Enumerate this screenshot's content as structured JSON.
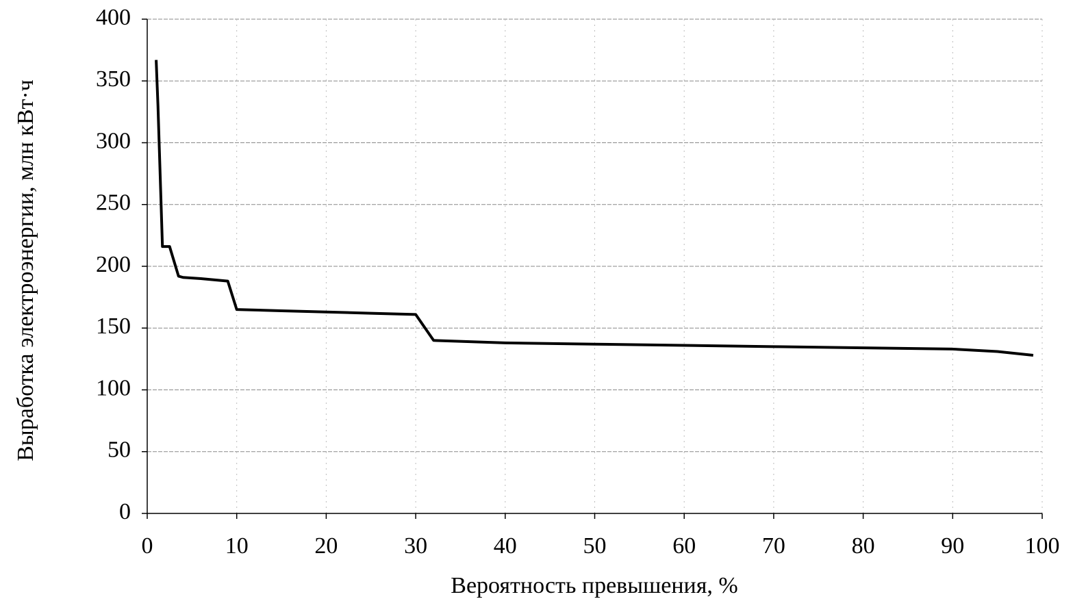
{
  "chart_data": {
    "type": "line",
    "x_label": "Вероятность превышения, %",
    "y_label": "Выработка электроэнергии, млн кВт·ч",
    "series": [
      {
        "color": "#000000",
        "x": [
          1,
          1.2,
          1.7,
          2.5,
          3.5,
          4,
          6,
          9,
          10,
          15,
          20,
          25,
          30,
          32,
          40,
          50,
          60,
          70,
          80,
          90,
          95,
          99
        ],
        "values": [
          367,
          330,
          216,
          216,
          192,
          191,
          190,
          188,
          165,
          164,
          163,
          162,
          161,
          140,
          138,
          137,
          136,
          135,
          134,
          133,
          131,
          128
        ]
      }
    ],
    "xlim": [
      0,
      100
    ],
    "xticks": [
      0,
      10,
      20,
      30,
      40,
      50,
      60,
      70,
      80,
      90,
      100
    ],
    "ylim": [
      0,
      400
    ],
    "yticks": [
      0,
      50,
      100,
      150,
      200,
      250,
      300,
      350,
      400
    ],
    "grid": true
  }
}
